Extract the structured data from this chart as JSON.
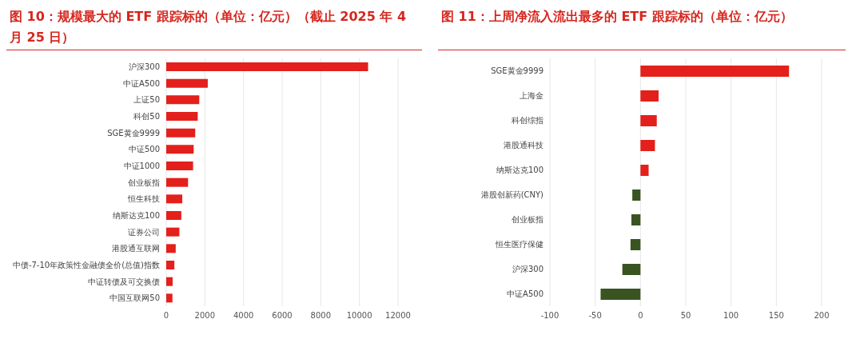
{
  "chart_data": [
    {
      "type": "bar",
      "orientation": "horizontal",
      "title": "图 10：规模最大的 ETF 跟踪标的（单位：亿元）（截止 2025 年 4 月 25 日）",
      "categories": [
        "沪深300",
        "中证A500",
        "上证50",
        "科创50",
        "SGE黄金9999",
        "中证500",
        "中证1000",
        "创业板指",
        "恒生科技",
        "纳斯达克100",
        "证券公司",
        "港股通互联网",
        "中债-7-10年政策性金融债全价(总值)指数",
        "中证转债及可交换债",
        "中国互联网50"
      ],
      "values": [
        10450,
        2150,
        1710,
        1630,
        1500,
        1420,
        1390,
        1130,
        830,
        780,
        680,
        490,
        420,
        330,
        320
      ],
      "color": "#e3201b",
      "xlim": [
        0,
        12000
      ],
      "xticks": [
        0,
        2000,
        4000,
        6000,
        8000,
        10000,
        12000
      ],
      "grid": "x",
      "legend": false
    },
    {
      "type": "bar",
      "orientation": "horizontal",
      "title": "图 11：上周净流入流出最多的 ETF 跟踪标的（单位：亿元）",
      "categories": [
        "SGE黄金9999",
        "上海金",
        "科创综指",
        "港股通科技",
        "纳斯达克100",
        "港股创新药(CNY)",
        "创业板指",
        "恒生医疗保健",
        "沪深300",
        "中证A500"
      ],
      "values": [
        164,
        20,
        18,
        16,
        9,
        -9,
        -10,
        -11,
        -20,
        -44
      ],
      "colors": [
        "#e3201b",
        "#e3201b",
        "#e3201b",
        "#e3201b",
        "#e3201b",
        "#3a5421",
        "#3a5421",
        "#3a5421",
        "#3a5421",
        "#3a5421"
      ],
      "xlim": [
        -100,
        200
      ],
      "xticks": [
        -100,
        -50,
        0,
        50,
        100,
        150,
        200
      ],
      "grid": "x",
      "legend": false
    }
  ]
}
